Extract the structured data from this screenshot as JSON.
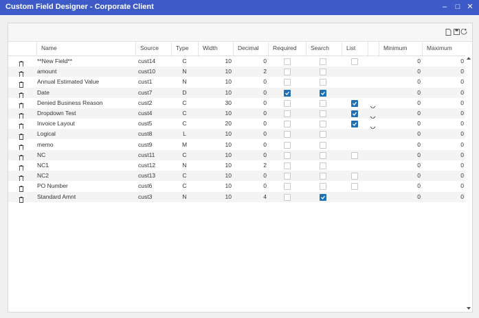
{
  "window": {
    "title": "Custom Field Designer - Corporate Client"
  },
  "table": {
    "columns": [
      "Name",
      "Source",
      "Type",
      "Width",
      "Decimal",
      "Required",
      "Search",
      "List",
      "Minimum",
      "Maximum"
    ],
    "rows": [
      {
        "name": "**New Field**",
        "source": "cust14",
        "type": "C",
        "width": 10,
        "decimal": 0,
        "required": false,
        "search": false,
        "list": false,
        "dropdown": false,
        "minimum": 0,
        "maximum": 0
      },
      {
        "name": "amount",
        "source": "cust10",
        "type": "N",
        "width": 10,
        "decimal": 2,
        "required": false,
        "search": false,
        "list": null,
        "dropdown": false,
        "minimum": 0,
        "maximum": 0
      },
      {
        "name": "Annual Estimated Value",
        "source": "cust1",
        "type": "N",
        "width": 10,
        "decimal": 0,
        "required": false,
        "search": false,
        "list": null,
        "dropdown": false,
        "minimum": 0,
        "maximum": 0
      },
      {
        "name": "Date",
        "source": "cust7",
        "type": "D",
        "width": 10,
        "decimal": 0,
        "required": true,
        "search": true,
        "list": null,
        "dropdown": false,
        "minimum": 0,
        "maximum": 0
      },
      {
        "name": "Denied Business Reason",
        "source": "cust2",
        "type": "C",
        "width": 30,
        "decimal": 0,
        "required": false,
        "search": false,
        "list": true,
        "dropdown": true,
        "minimum": 0,
        "maximum": 0
      },
      {
        "name": "Dropdown Test",
        "source": "cust4",
        "type": "C",
        "width": 10,
        "decimal": 0,
        "required": false,
        "search": false,
        "list": true,
        "dropdown": true,
        "minimum": 0,
        "maximum": 0
      },
      {
        "name": "Invoice Layout",
        "source": "cust5",
        "type": "C",
        "width": 20,
        "decimal": 0,
        "required": false,
        "search": false,
        "list": true,
        "dropdown": true,
        "minimum": 0,
        "maximum": 0
      },
      {
        "name": "Logical",
        "source": "cust8",
        "type": "L",
        "width": 10,
        "decimal": 0,
        "required": false,
        "search": false,
        "list": null,
        "dropdown": false,
        "minimum": 0,
        "maximum": 0
      },
      {
        "name": "memo",
        "source": "cust9",
        "type": "M",
        "width": 10,
        "decimal": 0,
        "required": false,
        "search": false,
        "list": null,
        "dropdown": false,
        "minimum": 0,
        "maximum": 0
      },
      {
        "name": "NC",
        "source": "cust11",
        "type": "C",
        "width": 10,
        "decimal": 0,
        "required": false,
        "search": false,
        "list": false,
        "dropdown": false,
        "minimum": 0,
        "maximum": 0
      },
      {
        "name": "NC1",
        "source": "cust12",
        "type": "N",
        "width": 10,
        "decimal": 2,
        "required": false,
        "search": false,
        "list": null,
        "dropdown": false,
        "minimum": 0,
        "maximum": 0
      },
      {
        "name": "NC2",
        "source": "cust13",
        "type": "C",
        "width": 10,
        "decimal": 0,
        "required": false,
        "search": false,
        "list": false,
        "dropdown": false,
        "minimum": 0,
        "maximum": 0
      },
      {
        "name": "PO Number",
        "source": "cust6",
        "type": "C",
        "width": 10,
        "decimal": 0,
        "required": false,
        "search": false,
        "list": false,
        "dropdown": false,
        "minimum": 0,
        "maximum": 0
      },
      {
        "name": "Standard Amnt",
        "source": "cust3",
        "type": "N",
        "width": 10,
        "decimal": 4,
        "required": false,
        "search": true,
        "list": null,
        "dropdown": false,
        "minimum": 0,
        "maximum": 0
      }
    ]
  }
}
